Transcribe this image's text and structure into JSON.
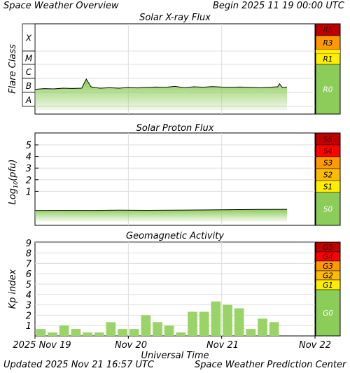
{
  "header": {
    "title": "Space Weather Overview",
    "begin_label": "Begin",
    "begin_time": "2025 11 19 00:00 UTC"
  },
  "footer": {
    "updated_label": "Updated",
    "updated_time": "2025 Nov 21 16:57 UTC",
    "source": "Space Weather Prediction Center"
  },
  "x_axis": {
    "title": "Universal Time",
    "ticks": [
      "2025 Nov 19",
      "Nov 20",
      "Nov 21",
      "Nov 22"
    ]
  },
  "colors": {
    "fill_green": "#8ccc58",
    "bar_green": "#9ad468",
    "dark_red": "#c00000",
    "red": "#ff0000",
    "orange": "#ff9900",
    "amber": "#ffbb00",
    "yellow": "#ffee00",
    "scale_green": "#8ccc58",
    "grid": "#dddddd"
  },
  "chart_data": [
    {
      "type": "area",
      "title": "Solar X-ray Flux",
      "ylabel": "Flare Class",
      "y_classes": [
        "X",
        "M",
        "C",
        "B",
        "A"
      ],
      "x_range_days": [
        0,
        3
      ],
      "series": [
        {
          "x": [
            0,
            0.1,
            0.2,
            0.3,
            0.4,
            0.5,
            0.55,
            0.6,
            0.65,
            0.7,
            0.8,
            0.9,
            1.0,
            1.1,
            1.2,
            1.3,
            1.4,
            1.5,
            1.6,
            1.7,
            1.8,
            1.9,
            2.0,
            2.1,
            2.2,
            2.3,
            2.4,
            2.5,
            2.6,
            2.62,
            2.65,
            2.7
          ],
          "y": [
            2.22,
            2.27,
            2.25,
            2.3,
            2.28,
            2.3,
            2.95,
            2.4,
            2.33,
            2.3,
            2.33,
            2.3,
            2.35,
            2.32,
            2.36,
            2.38,
            2.36,
            2.43,
            2.33,
            2.4,
            2.37,
            2.41,
            2.38,
            2.37,
            2.38,
            2.36,
            2.33,
            2.36,
            2.4,
            2.62,
            2.35,
            2.38
          ]
        }
      ],
      "scale": [
        {
          "label": "R5",
          "color": "#c00000"
        },
        {
          "label": "R3",
          "color": "#ff9900"
        },
        {
          "label": "R1",
          "color": "#ffee00"
        },
        {
          "label": "R0",
          "color": "#8ccc58"
        }
      ]
    },
    {
      "type": "area",
      "title": "Solar Proton Flux",
      "ylabel": "Log10(pfu)",
      "ylabel_main": "Log",
      "ylabel_sub": "10",
      "ylabel_rest": "(pfu)",
      "ylim": [
        -1.8,
        6
      ],
      "yticks": [
        "1",
        "2",
        "3",
        "4",
        "5"
      ],
      "x_range_days": [
        0,
        3
      ],
      "series": [
        {
          "x": [
            0,
            0.3,
            0.6,
            0.9,
            1.2,
            1.5,
            1.8,
            2.1,
            2.4,
            2.7
          ],
          "y": [
            -0.65,
            -0.63,
            -0.64,
            -0.62,
            -0.63,
            -0.62,
            -0.6,
            -0.58,
            -0.56,
            -0.55
          ]
        }
      ],
      "scale": [
        {
          "label": "S5",
          "color": "#c00000"
        },
        {
          "label": "S4",
          "color": "#ff0000"
        },
        {
          "label": "S3",
          "color": "#ff9900"
        },
        {
          "label": "S2",
          "color": "#ffbb00"
        },
        {
          "label": "S1",
          "color": "#ffee00"
        },
        {
          "label": "S0",
          "color": "#8ccc58"
        }
      ]
    },
    {
      "type": "bar",
      "title": "Geomagnetic Activity",
      "ylabel": "Kp index",
      "ylim": [
        0,
        10
      ],
      "yticks": [
        "1",
        "2",
        "3",
        "4",
        "5",
        "6",
        "7",
        "8",
        "9"
      ],
      "values": [
        0.67,
        0.33,
        1.0,
        0.67,
        0.33,
        0.33,
        1.33,
        0.67,
        0.67,
        2.0,
        1.33,
        1.0,
        0.33,
        2.33,
        2.33,
        3.33,
        3.0,
        2.67,
        0.67,
        1.67,
        1.33
      ],
      "x_range_days": [
        0,
        3
      ],
      "scale": [
        {
          "label": "G5",
          "color": "#c00000"
        },
        {
          "label": "G4",
          "color": "#ff0000"
        },
        {
          "label": "G3",
          "color": "#ff9900"
        },
        {
          "label": "G2",
          "color": "#ffbb00"
        },
        {
          "label": "G1",
          "color": "#ffee00"
        },
        {
          "label": "G0",
          "color": "#8ccc58"
        }
      ]
    }
  ]
}
